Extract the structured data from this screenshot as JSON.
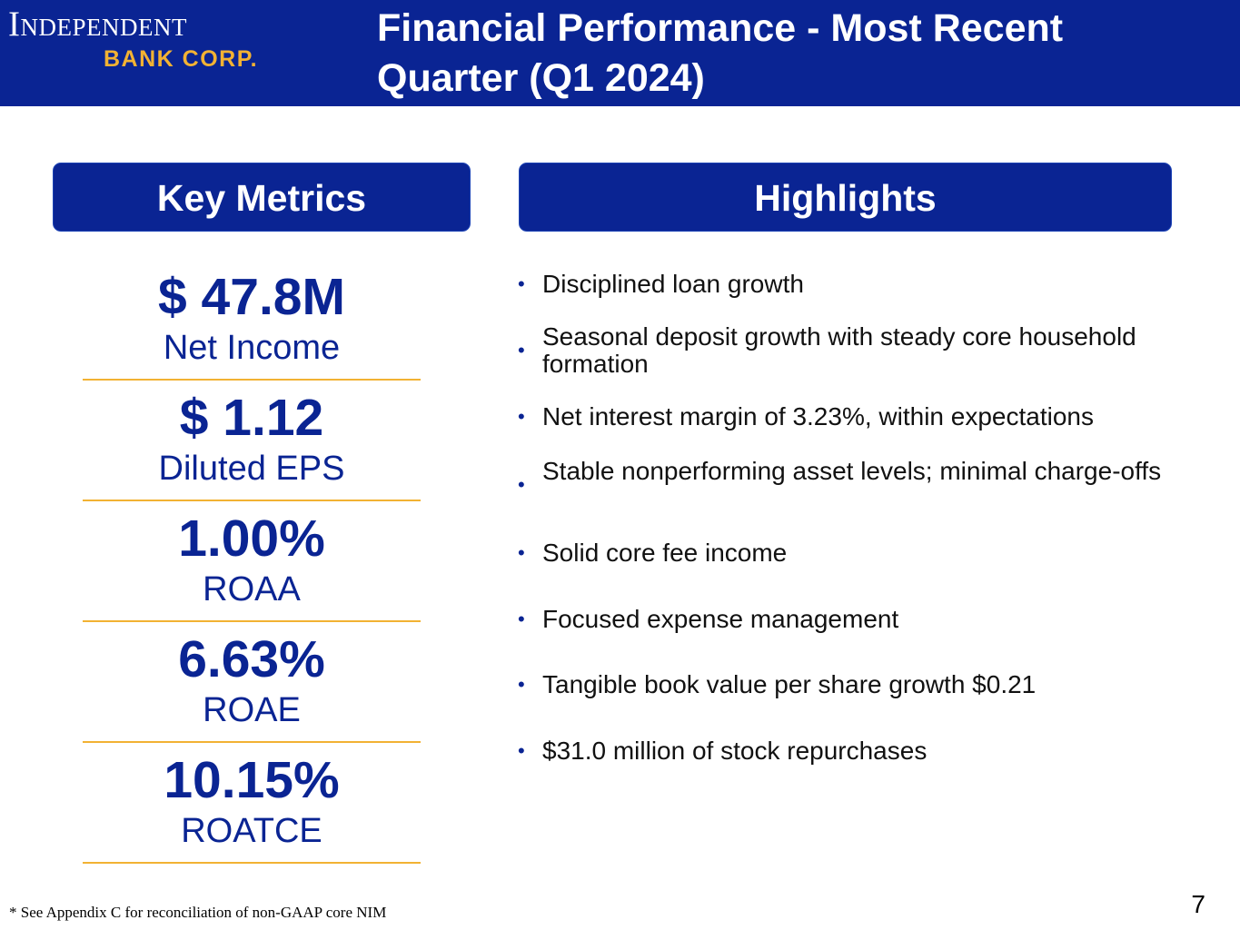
{
  "header": {
    "logo": {
      "line1": "Independent",
      "line2": "BANK CORP."
    },
    "title": "Financial Performance - Most Recent Quarter (Q1 2024)",
    "colors": {
      "brand_blue": "#0a2493",
      "accent_gold": "#f2b233"
    }
  },
  "key_metrics": {
    "heading": "Key Metrics",
    "items": [
      {
        "value": "$ 47.8M",
        "label": "Net Income"
      },
      {
        "value": "$ 1.12",
        "label": "Diluted EPS"
      },
      {
        "value": "1.00%",
        "label": "ROAA"
      },
      {
        "value": "6.63%",
        "label": "ROAE"
      },
      {
        "value": "10.15%",
        "label": "ROATCE"
      }
    ]
  },
  "highlights": {
    "heading": "Highlights",
    "bullet_glyph": "•",
    "items": [
      "Disciplined loan growth",
      "Seasonal deposit growth with steady core household formation",
      "Net interest margin of 3.23%, within expectations",
      "Stable nonperforming asset levels; minimal charge-offs",
      "Solid core fee income",
      "Focused expense management",
      "Tangible book value per share growth $0.21",
      "$31.0 million of stock repurchases"
    ]
  },
  "footnote": "* See Appendix C for reconciliation of non-GAAP core NIM",
  "page_number": "7"
}
